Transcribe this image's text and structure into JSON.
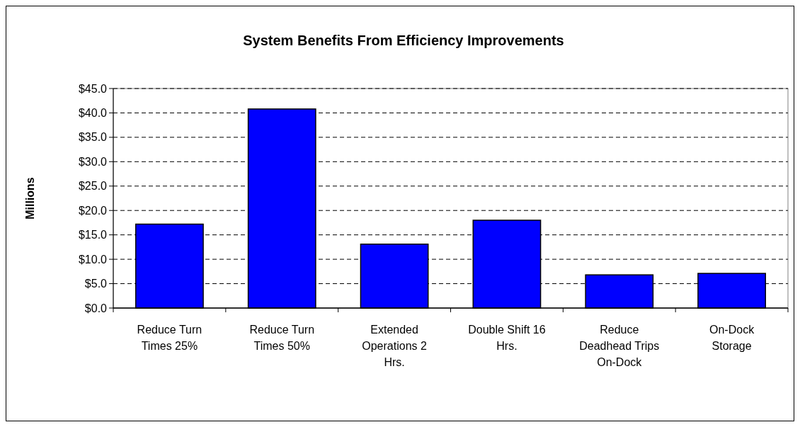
{
  "chart_data": {
    "type": "bar",
    "title": "System Benefits From Efficiency Improvements",
    "ylabel": "Millions",
    "categories": [
      "Reduce Turn Times 25%",
      "Reduce Turn Times 50%",
      "Extended Operations 2 Hrs.",
      "Double Shift 16 Hrs.",
      "Reduce Deadhead Trips On-Dock",
      "On-Dock Storage"
    ],
    "values": [
      17.2,
      40.8,
      13.1,
      18.0,
      6.8,
      7.1
    ],
    "color": "#0000ff",
    "ylim": [
      0,
      45
    ],
    "yticks": [
      {
        "value": 0,
        "label": "$0.0"
      },
      {
        "value": 5,
        "label": "$5.0"
      },
      {
        "value": 10,
        "label": "$10.0"
      },
      {
        "value": 15,
        "label": "$15.0"
      },
      {
        "value": 20,
        "label": "$20.0"
      },
      {
        "value": 25,
        "label": "$25.0"
      },
      {
        "value": 30,
        "label": "$30.0"
      },
      {
        "value": 35,
        "label": "$35.0"
      },
      {
        "value": 40,
        "label": "$40.0"
      },
      {
        "value": 45,
        "label": "$45.0"
      }
    ],
    "grid": "y"
  }
}
